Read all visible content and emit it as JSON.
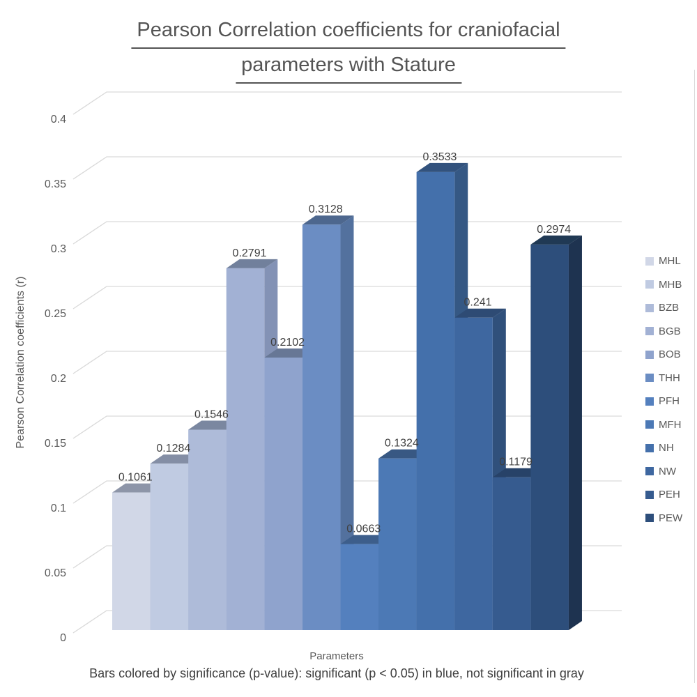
{
  "title": {
    "line1": "Pearson Correlation coefficients for craniofacial",
    "line2": "parameters with Stature"
  },
  "axes": {
    "y_title": "Pearson Correlation coefficients (r)",
    "x_title": "Parameters",
    "y_ticks": [
      "0",
      "0.05",
      "0.1",
      "0.15",
      "0.2",
      "0.25",
      "0.3",
      "0.35",
      "0.4"
    ]
  },
  "caption": "Bars colored by significance (p-value): significant (p < 0.05) in blue, not significant in gray",
  "colors": {
    "background": "#ffffff",
    "gridline": "#d9d9d9",
    "title_text": "#545454",
    "axis_text": "#595959",
    "label_text": "#404040"
  },
  "chart_data": {
    "type": "bar",
    "style": "3d-column",
    "title": "Pearson Correlation coefficients for craniofacial parameters with Stature",
    "xlabel": "Parameters",
    "ylabel": "Pearson Correlation coefficients (r)",
    "ylim": [
      0,
      0.4
    ],
    "ytick_interval": 0.05,
    "grid": true,
    "legend_position": "right",
    "categories": [
      "MHL",
      "MHB",
      "BZB",
      "BGB",
      "BOB",
      "THH",
      "PFH",
      "MFH",
      "NH",
      "NW",
      "PEH",
      "PEW"
    ],
    "values": [
      0.1061,
      0.1284,
      0.1546,
      0.2791,
      0.2102,
      0.3128,
      0.0663,
      0.1324,
      0.3533,
      0.241,
      0.1179,
      0.2974
    ],
    "value_labels": [
      "0.1061",
      "0.1284",
      "0.1546",
      "0.2791",
      "0.2102",
      "0.3128",
      "0.0663",
      "0.1324",
      "0.3533",
      "0.241",
      "0.1179",
      "0.2974"
    ],
    "bar_colors": [
      {
        "front": "#d1d7e7",
        "top": "#8d95a8",
        "side": "#b3bbce"
      },
      {
        "front": "#c0cbe2",
        "top": "#848ea5",
        "side": "#a4b0cb"
      },
      {
        "front": "#aebbd9",
        "top": "#7a87a0",
        "side": "#93a2c2"
      },
      {
        "front": "#a2b1d4",
        "top": "#71809c",
        "side": "#8392b5"
      },
      {
        "front": "#8fa3cd",
        "top": "#677795",
        "side": "#7386ad"
      },
      {
        "front": "#6b8dc3",
        "top": "#4d678e",
        "side": "#53719e"
      },
      {
        "front": "#5480be",
        "top": "#3d5e8b",
        "side": "#426594"
      },
      {
        "front": "#4c79b5",
        "top": "#385883",
        "side": "#3c5f8c"
      },
      {
        "front": "#4470ab",
        "top": "#32527d",
        "side": "#355884"
      },
      {
        "front": "#3e67a0",
        "top": "#2e4b74",
        "side": "#30507b"
      },
      {
        "front": "#365b8f",
        "top": "#274268",
        "side": "#294570"
      },
      {
        "front": "#2d4e7b",
        "top": "#203954",
        "side": "#1e3350"
      }
    ]
  }
}
